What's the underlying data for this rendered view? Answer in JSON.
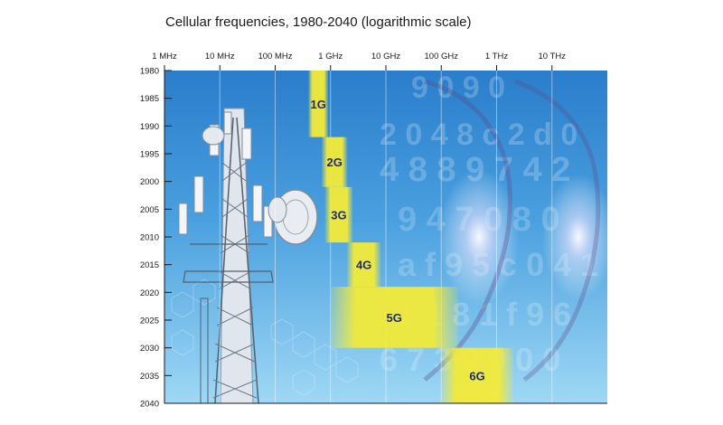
{
  "chart_data": {
    "type": "bar",
    "orientation": "horizontal-ranges",
    "title": "Cellular frequencies, 1980-2040 (logarithmic scale)",
    "x_scale": "log",
    "x_ticks": [
      {
        "label": "1 MHz",
        "hz": 1000000
      },
      {
        "label": "10 MHz",
        "hz": 10000000
      },
      {
        "label": "100 MHz",
        "hz": 100000000
      },
      {
        "label": "1 GHz",
        "hz": 1000000000
      },
      {
        "label": "10 GHz",
        "hz": 10000000000
      },
      {
        "label": "100 GHz",
        "hz": 100000000000
      },
      {
        "label": "1 THz",
        "hz": 1000000000000
      },
      {
        "label": "10 THz",
        "hz": 10000000000000
      }
    ],
    "xlim_hz": [
      1000000,
      100000000000000
    ],
    "y_ticks": [
      "1980",
      "1985",
      "1990",
      "1995",
      "2000",
      "2005",
      "2010",
      "2015",
      "2020",
      "2025",
      "2030",
      "2035",
      "2040"
    ],
    "ylim": [
      1980,
      2040
    ],
    "grid": true,
    "series": [
      {
        "label": "1G",
        "freq_min_hz": 400000000,
        "freq_max_hz": 900000000,
        "year_start": 1980,
        "year_end": 1992
      },
      {
        "label": "2G",
        "freq_min_hz": 700000000,
        "freq_max_hz": 2000000000,
        "year_start": 1992,
        "year_end": 2001
      },
      {
        "label": "3G",
        "freq_min_hz": 800000000,
        "freq_max_hz": 2500000000,
        "year_start": 2001,
        "year_end": 2011
      },
      {
        "label": "4G",
        "freq_min_hz": 2000000000,
        "freq_max_hz": 8000000000,
        "year_start": 2011,
        "year_end": 2019
      },
      {
        "label": "5G",
        "freq_min_hz": 1000000000,
        "freq_max_hz": 200000000000,
        "year_start": 2019,
        "year_end": 2030
      },
      {
        "label": "6G",
        "freq_min_hz": 100000000000,
        "freq_max_hz": 2000000000000,
        "year_start": 2030,
        "year_end": 2040
      }
    ],
    "colors": {
      "band_fill": "#f2ea3a",
      "band_label": "#1f2a7a",
      "background_top": "#2f85cf",
      "background_bottom": "#8fd0f3",
      "grid": "#ffffff",
      "axis_text": "#1a1a1a"
    }
  }
}
